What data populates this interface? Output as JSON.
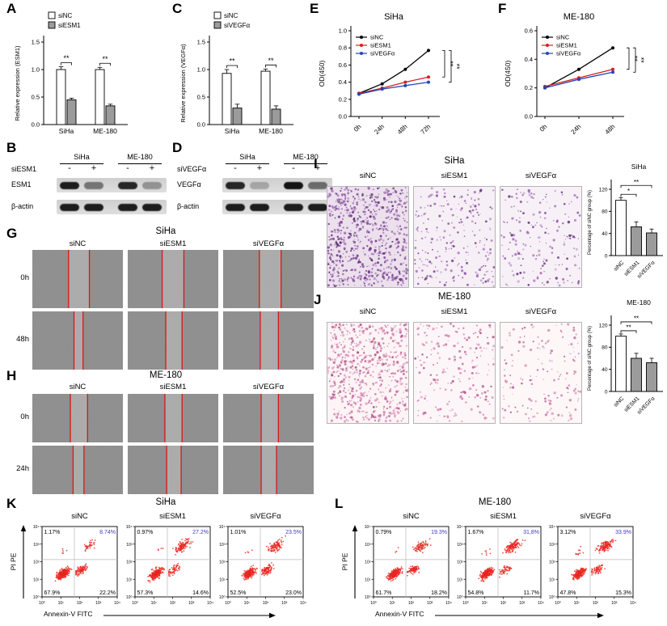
{
  "colors": {
    "siNC": "#000000",
    "siESM1": "#d42020",
    "siVEGFa": "#2244bb",
    "bar_white": "#ffffff",
    "bar_gray": "#9b9b9b",
    "flow_dot": "#e8251f",
    "blue_pct": "#3a3acc",
    "wound_line": "#dd1515"
  },
  "flow_ticks": [
    "10⁰",
    "10¹",
    "10²",
    "10³",
    "10⁴"
  ],
  "panelA": {
    "letter": "A",
    "chart_data": {
      "type": "bar",
      "ylabel": "Relative expression (ESM1)",
      "ylim": [
        0,
        1.5
      ],
      "yticks": [
        "0.0",
        "0.5",
        "1.0",
        "1.5"
      ],
      "categories": [
        "SiHa",
        "ME-180"
      ],
      "series": [
        {
          "name": "siNC",
          "fill": "#ffffff",
          "values": [
            1.0,
            1.0
          ],
          "errors": [
            0.05,
            0.04
          ]
        },
        {
          "name": "siESM1",
          "fill": "#9b9b9b",
          "values": [
            0.45,
            0.34
          ],
          "errors": [
            0.03,
            0.03
          ]
        }
      ],
      "sig": [
        "**",
        "**"
      ]
    }
  },
  "panelB": {
    "letter": "B",
    "treatment": "siESM1",
    "lanes": [
      "-",
      "+",
      "-",
      "+"
    ],
    "groups": [
      "SiHa",
      "ME-180"
    ],
    "rows": [
      {
        "label": "ESM1",
        "bands": [
          0.95,
          0.5,
          0.9,
          0.35
        ]
      },
      {
        "label": "β-actin",
        "bands": [
          0.95,
          0.95,
          0.95,
          0.95
        ]
      }
    ]
  },
  "panelC": {
    "letter": "C",
    "chart_data": {
      "type": "bar",
      "ylabel": "Relative expression (VEGFα)",
      "ylim": [
        0,
        1.5
      ],
      "yticks": [
        "0.0",
        "0.5",
        "1.0",
        "1.5"
      ],
      "categories": [
        "SiHa",
        "ME-180"
      ],
      "series": [
        {
          "name": "siNC",
          "fill": "#ffffff",
          "values": [
            0.93,
            0.97
          ],
          "errors": [
            0.07,
            0.04
          ]
        },
        {
          "name": "siVEGFα",
          "fill": "#9b9b9b",
          "values": [
            0.3,
            0.28
          ],
          "errors": [
            0.07,
            0.06
          ]
        }
      ],
      "sig": [
        "**",
        "**"
      ]
    }
  },
  "panelD": {
    "letter": "D",
    "treatment": "siVEGFα",
    "lanes": [
      "-",
      "+",
      "-",
      "+"
    ],
    "groups": [
      "SiHa",
      "ME-180"
    ],
    "rows": [
      {
        "label": "VEGFα",
        "bands": [
          0.9,
          0.25,
          1,
          0.55
        ]
      },
      {
        "label": "β-actin",
        "bands": [
          0.95,
          0.95,
          0.95,
          0.95
        ]
      }
    ]
  },
  "panelE": {
    "letter": "E",
    "title": "SiHa",
    "chart_data": {
      "type": "line",
      "ylabel": "OD(450)",
      "ylim": [
        0,
        1.0
      ],
      "yticks": [
        "0.0",
        "0.2",
        "0.4",
        "0.6",
        "0.8",
        "1.0"
      ],
      "x": [
        "0h",
        "24h",
        "48h",
        "72h"
      ],
      "series": [
        {
          "name": "siNC",
          "color": "#000000",
          "values": [
            0.27,
            0.38,
            0.55,
            0.77
          ]
        },
        {
          "name": "siESM1",
          "color": "#d42020",
          "values": [
            0.27,
            0.33,
            0.4,
            0.46
          ]
        },
        {
          "name": "siVEGFα",
          "color": "#2244bb",
          "values": [
            0.26,
            0.32,
            0.36,
            0.4
          ]
        }
      ],
      "sig": [
        "**",
        "**"
      ]
    }
  },
  "panelF": {
    "letter": "F",
    "title": "ME-180",
    "chart_data": {
      "type": "line",
      "ylabel": "OD(450)",
      "ylim": [
        0,
        0.6
      ],
      "yticks": [
        "0.0",
        "0.2",
        "0.4",
        "0.6"
      ],
      "x": [
        "0h",
        "24h",
        "48h"
      ],
      "series": [
        {
          "name": "siNC",
          "color": "#000000",
          "values": [
            0.2,
            0.33,
            0.48
          ]
        },
        {
          "name": "siESM1",
          "color": "#d42020",
          "values": [
            0.21,
            0.27,
            0.33
          ]
        },
        {
          "name": "siVEGFα",
          "color": "#2244bb",
          "values": [
            0.2,
            0.26,
            0.31
          ]
        }
      ],
      "sig": [
        "**",
        "**"
      ]
    }
  },
  "panelG": {
    "letter": "G",
    "title": "SiHa",
    "col_labels": [
      "siNC",
      "siESM1",
      "siVEGFα"
    ],
    "row_labels": [
      "0h",
      "48h"
    ],
    "images": [
      [
        {
          "lines": [
            0.4,
            0.63
          ]
        },
        {
          "lines": [
            0.38,
            0.62
          ]
        },
        {
          "lines": [
            0.4,
            0.64
          ]
        }
      ],
      [
        {
          "lines": [
            0.46,
            0.56
          ]
        },
        {
          "lines": [
            0.42,
            0.6
          ]
        },
        {
          "lines": [
            0.41,
            0.61
          ]
        }
      ]
    ]
  },
  "panelH": {
    "letter": "H",
    "title": "ME-180",
    "col_labels": [
      "siNC",
      "siESM1",
      "siVEGFα"
    ],
    "row_labels": [
      "0h",
      "24h"
    ],
    "images": [
      [
        {
          "lines": [
            0.42,
            0.61
          ]
        },
        {
          "lines": [
            0.41,
            0.6
          ]
        },
        {
          "lines": [
            0.42,
            0.61
          ]
        }
      ],
      [
        {
          "lines": [
            0.45,
            0.57
          ]
        },
        {
          "lines": [
            0.43,
            0.59
          ]
        },
        {
          "lines": [
            0.42,
            0.59
          ]
        }
      ]
    ]
  },
  "panelI": {
    "letter": "I",
    "title": "SiHa",
    "col_labels": [
      "siNC",
      "siESM1",
      "siVEGFα"
    ],
    "images": [
      {
        "density": 700,
        "bg": "#ece0ed",
        "dots": [
          "#7a3d92",
          "#9a5cae",
          "#5d2f73"
        ]
      },
      {
        "density": 240,
        "bg": "#f6eff6",
        "dots": [
          "#8a4aa0",
          "#a86dbb",
          "#6d3a83"
        ]
      },
      {
        "density": 185,
        "bg": "#f7f1f7",
        "dots": [
          "#8a4aa0",
          "#a86dbb",
          "#6d3a83"
        ]
      }
    ],
    "chart_data": {
      "type": "bar",
      "title": "SiHa",
      "ylabel": "Percentage of siNC group (%)",
      "ylim": [
        0,
        120
      ],
      "yticks": [
        "0",
        "40",
        "80",
        "120"
      ],
      "categories": [
        "siNC",
        "siESM1",
        "siVEGFα"
      ],
      "values": [
        100,
        52,
        41
      ],
      "errors": [
        5,
        9,
        7
      ],
      "fills": [
        "#ffffff",
        "#9b9b9b",
        "#9b9b9b"
      ],
      "sig": [
        "*",
        "**"
      ]
    }
  },
  "panelJ": {
    "letter": "J",
    "title": "ME-180",
    "col_labels": [
      "siNC",
      "siESM1",
      "siVEGFα"
    ],
    "images": [
      {
        "density": 620,
        "bg": "#fdf4f6",
        "dots": [
          "#c4679c",
          "#b05688",
          "#d687b2"
        ]
      },
      {
        "density": 210,
        "bg": "#fdf6f8",
        "dots": [
          "#c4679c",
          "#b05688",
          "#d687b2"
        ]
      },
      {
        "density": 165,
        "bg": "#fdf7f8",
        "dots": [
          "#c4679c",
          "#b05688",
          "#d687b2"
        ]
      }
    ],
    "chart_data": {
      "type": "bar",
      "title": "ME-180",
      "ylabel": "Percentage of siNC group (%)",
      "ylim": [
        0,
        120
      ],
      "yticks": [
        "0",
        "40",
        "80",
        "120"
      ],
      "categories": [
        "siNC",
        "siESM1",
        "siVEGFα"
      ],
      "values": [
        100,
        60,
        52
      ],
      "errors": [
        4,
        9,
        8
      ],
      "fills": [
        "#ffffff",
        "#9b9b9b",
        "#9b9b9b"
      ],
      "sig": [
        "**",
        "**"
      ]
    }
  },
  "panelK": {
    "letter": "K",
    "title": "SiHa",
    "xlabel": "Annexin-V  FITC",
    "ylabel": "PI  PE",
    "plots": [
      {
        "label": "siNC",
        "ul": "1.17%",
        "ur": "8.74%",
        "ll": "67.9%",
        "lr": "22.2%"
      },
      {
        "label": "siESM1",
        "ul": "0.97%",
        "ur": "27.2%",
        "ll": "57.3%",
        "lr": "14.6%"
      },
      {
        "label": "siVEGFα",
        "ul": "1.01%",
        "ur": "23.5%",
        "ll": "52.5%",
        "lr": "23.0%"
      }
    ]
  },
  "panelL": {
    "letter": "L",
    "title": "ME-180",
    "xlabel": "Annexin-V  FITC",
    "ylabel": "PI  PE",
    "plots": [
      {
        "label": "siNC",
        "ul": "0.79%",
        "ur": "19.3%",
        "ll": "61.7%",
        "lr": "18.2%"
      },
      {
        "label": "siESM1",
        "ul": "1.67%",
        "ur": "31,8%",
        "ll": "54.8%",
        "lr": "11.7%"
      },
      {
        "label": "siVEGFα",
        "ul": "3.12%",
        "ur": "33.9%",
        "ll": "47.8%",
        "lr": "15.3%"
      }
    ]
  }
}
